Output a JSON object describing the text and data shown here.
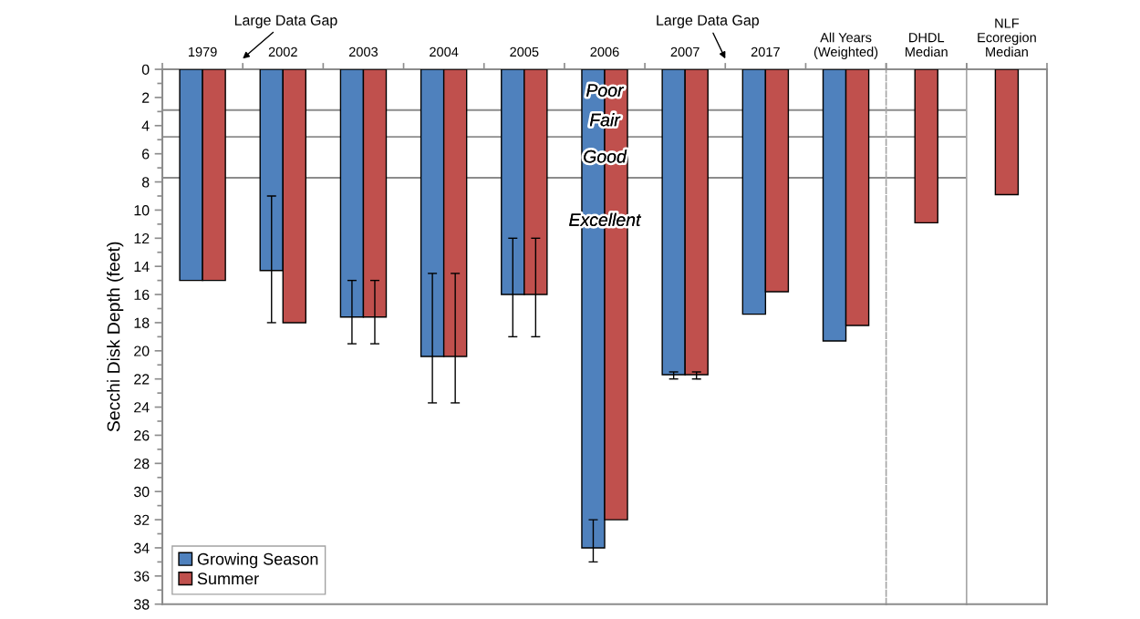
{
  "chart_data": [
    {
      "type": "bar",
      "ylabel": "Secchi Disk Depth (feet)",
      "categories": [
        "1979",
        "2002",
        "2003",
        "2004",
        "2005",
        "2006",
        "2007",
        "2017",
        "All Years\n(Weighted)"
      ],
      "series": [
        {
          "name": "Growing Season",
          "color": "#4f81bd",
          "values": [
            15.0,
            14.3,
            17.6,
            20.4,
            16.0,
            34.0,
            21.7,
            17.4,
            19.3
          ],
          "errors": [
            null,
            [
              9.0,
              18.0
            ],
            [
              15.0,
              19.5
            ],
            [
              14.5,
              23.7
            ],
            [
              12.0,
              19.0
            ],
            [
              32.0,
              35.0
            ],
            [
              21.5,
              22.0
            ],
            null,
            null
          ]
        },
        {
          "name": "Summer",
          "color": "#c0504d",
          "values": [
            15.0,
            18.0,
            17.6,
            20.4,
            16.0,
            32.0,
            21.7,
            15.8,
            18.2
          ],
          "errors": [
            null,
            null,
            [
              15.0,
              19.5
            ],
            [
              14.5,
              23.7
            ],
            [
              12.0,
              19.0
            ],
            null,
            [
              21.5,
              22.0
            ],
            null,
            null
          ]
        }
      ],
      "ylim": [
        38,
        0
      ],
      "yticks": [
        0,
        {
          "value": 1,
          "label": null
        },
        2,
        {
          "value": 3,
          "label": null
        },
        4,
        {
          "value": 5,
          "label": null
        },
        6,
        {
          "value": 7,
          "label": null
        },
        8,
        {
          "value": 9,
          "label": null
        },
        10,
        {
          "value": 11,
          "label": null
        },
        12,
        {
          "value": 13,
          "label": null
        },
        14,
        {
          "value": 15,
          "label": null
        },
        16,
        {
          "value": 17,
          "label": null
        },
        18,
        {
          "value": 19,
          "label": null
        },
        20,
        {
          "value": 21,
          "label": null
        },
        22,
        {
          "value": 23,
          "label": null
        },
        24,
        {
          "value": 25,
          "label": null
        },
        26,
        {
          "value": 27,
          "label": null
        },
        28,
        {
          "value": 29,
          "label": null
        },
        30,
        {
          "value": 31,
          "label": null
        },
        32,
        {
          "value": 33,
          "label": null
        },
        34,
        {
          "value": 35,
          "label": null
        },
        36,
        {
          "value": 37,
          "label": null
        },
        38
      ],
      "ref_lines": [
        {
          "axis": "y",
          "value": 2.9,
          "color": "#8c8c8c",
          "line_style": "solid"
        },
        {
          "axis": "y",
          "value": 4.8,
          "color": "#8c8c8c",
          "line_style": "solid"
        },
        {
          "axis": "y",
          "value": 7.7,
          "color": "#8c8c8c",
          "line_style": "solid"
        }
      ],
      "annotations": [
        "Large Data Gap",
        "Large Data Gap",
        {
          "text": "Poor",
          "x": "2006",
          "y": 1.6
        },
        {
          "text": "Fair",
          "x": "2006",
          "y": 3.7
        },
        {
          "text": "Good",
          "x": "2006",
          "y": 6.3
        },
        {
          "text": "Excellent",
          "x": "2006",
          "y": 10.8
        }
      ],
      "legend": "bottom left"
    },
    {
      "type": "bar",
      "categories": [
        "DHDL\nMedian"
      ],
      "series": [
        {
          "color": "#c0504d",
          "values": [
            10.9
          ]
        }
      ],
      "ylim": [
        38,
        0
      ],
      "ref_lines": [
        {
          "axis": "y",
          "value": 2.9,
          "color": "#8c8c8c",
          "line_style": "solid"
        },
        {
          "axis": "y",
          "value": 4.8,
          "color": "#8c8c8c",
          "line_style": "solid"
        },
        {
          "axis": "y",
          "value": 7.7,
          "color": "#8c8c8c",
          "line_style": "solid"
        }
      ],
      "tick_labels": "x"
    },
    {
      "type": "bar",
      "categories": [
        "NLF\nEcoregion\nMedian"
      ],
      "series": [
        {
          "color": "#c0504d",
          "values": [
            8.9
          ]
        }
      ],
      "ylim": [
        38,
        0
      ],
      "tick_labels": "x"
    }
  ]
}
